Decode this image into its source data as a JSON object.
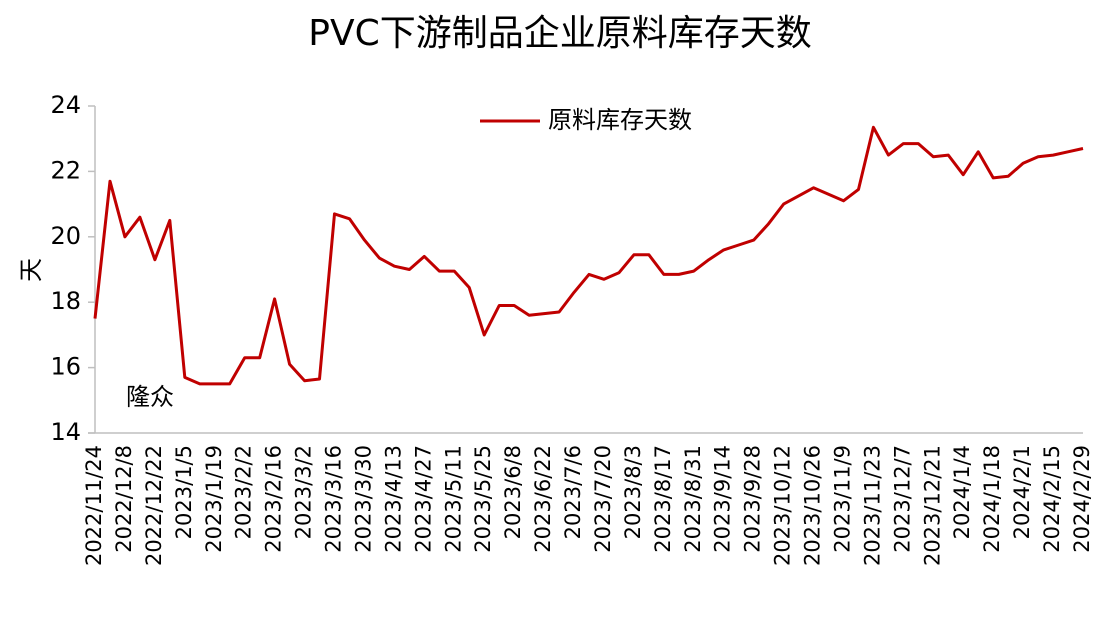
{
  "chart_data": {
    "type": "line",
    "title": "PVC下游制品企业原料库存天数",
    "y_label": "天",
    "annotation": "隆众",
    "categories": [
      "2022/11/24",
      null,
      "2022/12/8",
      null,
      "2022/12/22",
      null,
      "2023/1/5",
      null,
      "2023/1/19",
      null,
      "2023/2/2",
      null,
      "2023/2/16",
      null,
      "2023/3/2",
      null,
      "2023/3/16",
      null,
      "2023/3/30",
      null,
      "2023/4/13",
      null,
      "2023/4/27",
      null,
      "2023/5/11",
      null,
      "2023/5/25",
      null,
      "2023/6/8",
      null,
      "2023/6/22",
      null,
      "2023/7/6",
      null,
      "2023/7/20",
      null,
      "2023/8/3",
      null,
      "2023/8/17",
      null,
      "2023/8/31",
      null,
      "2023/9/14",
      null,
      "2023/9/28",
      null,
      "2023/10/12",
      null,
      "2023/10/26",
      null,
      "2023/11/9",
      null,
      "2023/11/23",
      null,
      "2023/12/7",
      null,
      "2023/12/21",
      null,
      "2024/1/4",
      null,
      "2024/1/18",
      null,
      "2024/2/1",
      null,
      "2024/2/15",
      null,
      "2024/2/29"
    ],
    "series": [
      {
        "name": "原料库存天数",
        "color": "#c00000",
        "values": [
          17.5,
          21.7,
          20.0,
          20.6,
          19.3,
          20.5,
          15.7,
          15.5,
          15.5,
          15.5,
          16.3,
          16.3,
          18.1,
          16.1,
          15.6,
          15.65,
          20.7,
          20.55,
          19.9,
          19.35,
          19.1,
          19.0,
          19.4,
          18.95,
          18.95,
          18.45,
          17.0,
          17.9,
          17.9,
          17.6,
          17.65,
          17.7,
          18.3,
          18.85,
          18.7,
          18.9,
          19.45,
          19.45,
          18.85,
          18.85,
          18.95,
          19.3,
          19.6,
          19.75,
          19.9,
          20.4,
          21.0,
          21.25,
          21.5,
          21.3,
          21.1,
          21.45,
          23.35,
          22.5,
          22.85,
          22.85,
          22.45,
          22.5,
          21.9,
          22.6,
          21.8,
          21.85,
          22.25,
          22.45,
          22.5,
          22.6,
          22.7
        ]
      }
    ],
    "ylim": [
      14,
      24
    ],
    "yticks": [
      14,
      16,
      18,
      20,
      22,
      24
    ],
    "grid": false,
    "legend": "top"
  }
}
